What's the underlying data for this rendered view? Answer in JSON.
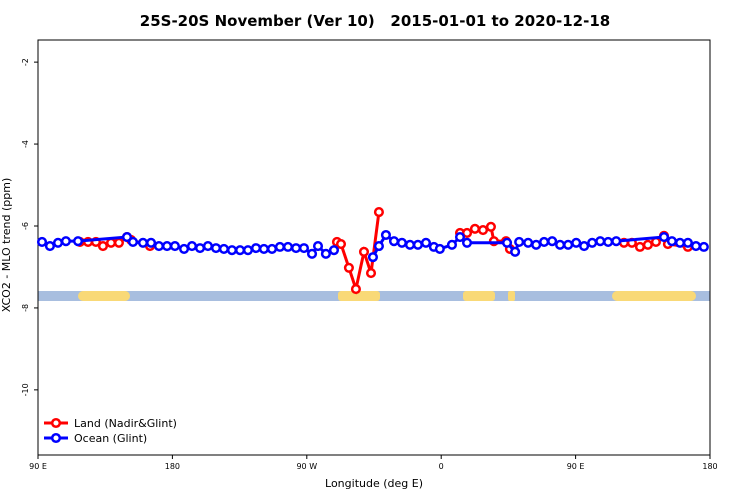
{
  "chart_data": {
    "type": "line",
    "title": "25S-20S November (Ver 10)   2015-01-01 to 2020-12-18",
    "xlabel": "Longitude (deg E)",
    "ylabel": "XCO2 - MLO trend (ppm)",
    "xlim": [
      90,
      540
    ],
    "xticks": [
      {
        "value": 90,
        "label": "90 E"
      },
      180,
      {
        "value": 270,
        "label": "90 W"
      },
      {
        "value": 360,
        "label": "0"
      },
      {
        "value": 450,
        "label": "90 E"
      },
      {
        "value": 540,
        "label": "180"
      }
    ],
    "ylim": [
      -11.59,
      -1.46
    ],
    "yticks": [
      -2,
      -4,
      -6,
      -8,
      -10
    ],
    "legend": "bottom-left",
    "series": [
      {
        "name": "Land (Nadir&Glint)",
        "color": "#ff0000",
        "x": [
          118.1,
          123.5,
          128.8,
          133.5,
          138.9,
          144.2,
          149.6,
          152.3,
          165.0,
          null,
          290.2,
          292.9,
          298.2,
          302.9,
          308.3,
          313.0,
          318.3,
          null,
          372.6,
          377.3,
          382.6,
          388.0,
          393.3,
          395.3,
          403.4,
          406.0,
          null,
          482.4,
          487.7,
          493.1,
          498.4,
          503.8,
          509.2,
          511.8,
          525.2
        ],
        "values": [
          -6.39,
          -6.39,
          -6.39,
          -6.49,
          -6.41,
          -6.41,
          -6.27,
          -6.34,
          -6.49,
          null,
          -6.39,
          -6.44,
          -7.02,
          -7.54,
          -6.63,
          -7.15,
          -5.66,
          null,
          -6.17,
          -6.17,
          -6.07,
          -6.1,
          -6.02,
          -6.37,
          -6.37,
          -6.56,
          null,
          -6.41,
          -6.41,
          -6.51,
          -6.46,
          -6.39,
          -6.24,
          -6.44,
          -6.51
        ]
      },
      {
        "name": "Ocean (Glint)",
        "color": "#0000ff",
        "x": [
          92.7,
          98.0,
          103.4,
          108.7,
          116.8,
          149.6,
          153.6,
          160.3,
          165.7,
          171.0,
          176.4,
          181.7,
          187.8,
          193.1,
          198.5,
          203.8,
          209.2,
          214.5,
          219.9,
          225.3,
          230.6,
          236.0,
          241.3,
          246.7,
          252.0,
          257.4,
          262.8,
          268.1,
          273.5,
          277.5,
          282.8,
          288.2,
          null,
          314.3,
          318.3,
          323.0,
          328.4,
          333.7,
          339.1,
          344.4,
          349.8,
          355.1,
          359.1,
          367.2,
          372.6,
          377.3,
          404.1,
          409.5,
          412.2,
          418.2,
          423.6,
          428.9,
          434.3,
          439.6,
          445.0,
          450.4,
          455.7,
          461.1,
          466.5,
          471.8,
          477.2,
          509.2,
          514.5,
          519.9,
          525.2,
          530.6,
          535.9
        ],
        "values": [
          -6.39,
          -6.49,
          -6.41,
          -6.37,
          -6.37,
          -6.27,
          -6.39,
          -6.41,
          -6.41,
          -6.49,
          -6.49,
          -6.49,
          -6.56,
          -6.49,
          -6.54,
          -6.49,
          -6.54,
          -6.56,
          -6.59,
          -6.59,
          -6.59,
          -6.54,
          -6.56,
          -6.56,
          -6.51,
          -6.51,
          -6.54,
          -6.54,
          -6.68,
          -6.49,
          -6.68,
          -6.59,
          null,
          -6.76,
          -6.49,
          -6.22,
          -6.37,
          -6.41,
          -6.46,
          -6.46,
          -6.41,
          -6.51,
          -6.56,
          -6.46,
          -6.27,
          -6.41,
          -6.41,
          -6.63,
          -6.39,
          -6.41,
          -6.46,
          -6.39,
          -6.37,
          -6.46,
          -6.46,
          -6.41,
          -6.49,
          -6.41,
          -6.37,
          -6.39,
          -6.37,
          -6.27,
          -6.37,
          -6.41,
          -6.41,
          -6.49,
          -6.51
        ]
      }
    ]
  }
}
